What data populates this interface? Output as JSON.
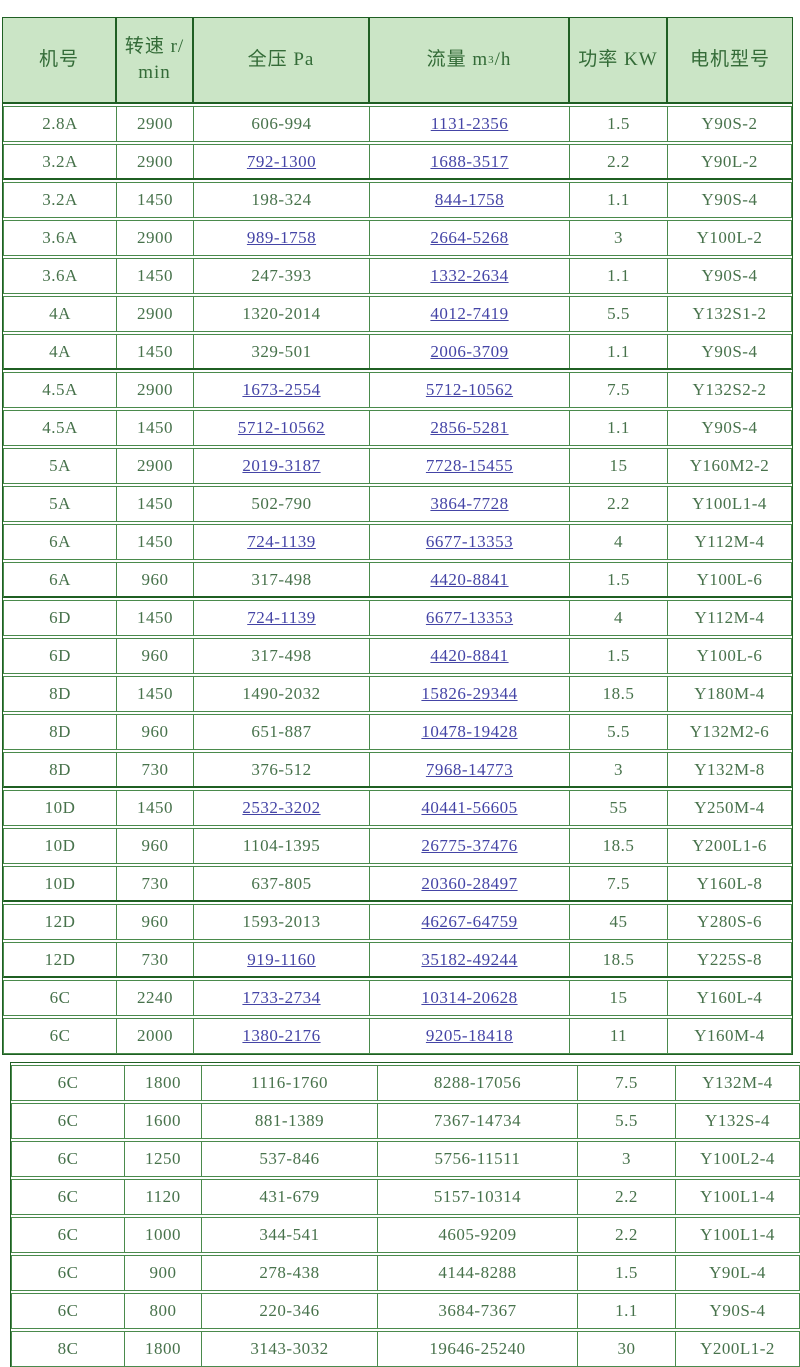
{
  "colors": {
    "header_bg": "#cbe5c6",
    "border_green": "#4a8a4c",
    "border_dark_green": "#1f5f23",
    "text_green": "#47724b",
    "link_blue": "#4444a6",
    "page_bg": "#ffffff"
  },
  "table": {
    "headers": {
      "machine": "机号",
      "speed": "转速 r/min",
      "pressure": "全压 Pa",
      "flow_prefix": "流量 m",
      "flow_sup": "3",
      "flow_suffix": "/h",
      "power": "功率 KW",
      "motor": "电机型号"
    },
    "rows": [
      {
        "machine": "2.8A",
        "speed": "2900",
        "pressure": "606-994",
        "pressure_link": false,
        "flow": "1131-2356",
        "flow_link": true,
        "power": "1.5",
        "motor": "Y90S-2",
        "group_end": false,
        "section": 1
      },
      {
        "machine": "3.2A",
        "speed": "2900",
        "pressure": "792-1300",
        "pressure_link": true,
        "flow": "1688-3517",
        "flow_link": true,
        "power": "2.2",
        "motor": "Y90L-2",
        "group_end": true,
        "section": 1
      },
      {
        "machine": "3.2A",
        "speed": "1450",
        "pressure": "198-324",
        "pressure_link": false,
        "flow": "844-1758",
        "flow_link": true,
        "power": "1.1",
        "motor": "Y90S-4",
        "group_end": false,
        "section": 1
      },
      {
        "machine": "3.6A",
        "speed": "2900",
        "pressure": "989-1758",
        "pressure_link": true,
        "flow": "2664-5268",
        "flow_link": true,
        "power": "3",
        "motor": "Y100L-2",
        "group_end": false,
        "section": 1
      },
      {
        "machine": "3.6A",
        "speed": "1450",
        "pressure": "247-393",
        "pressure_link": false,
        "flow": "1332-2634",
        "flow_link": true,
        "power": "1.1",
        "motor": "Y90S-4",
        "group_end": false,
        "section": 1
      },
      {
        "machine": "4A",
        "speed": "2900",
        "pressure": "1320-2014",
        "pressure_link": false,
        "flow": "4012-7419",
        "flow_link": true,
        "power": "5.5",
        "motor": "Y132S1-2",
        "group_end": false,
        "section": 1
      },
      {
        "machine": "4A",
        "speed": "1450",
        "pressure": "329-501",
        "pressure_link": false,
        "flow": "2006-3709",
        "flow_link": true,
        "power": "1.1",
        "motor": "Y90S-4",
        "group_end": true,
        "section": 1
      },
      {
        "machine": "4.5A",
        "speed": "2900",
        "pressure": "1673-2554",
        "pressure_link": true,
        "flow": "5712-10562",
        "flow_link": true,
        "power": "7.5",
        "motor": "Y132S2-2",
        "group_end": false,
        "section": 1
      },
      {
        "machine": "4.5A",
        "speed": "1450",
        "pressure": "5712-10562",
        "pressure_link": true,
        "flow": "2856-5281",
        "flow_link": true,
        "power": "1.1",
        "motor": "Y90S-4",
        "group_end": false,
        "section": 1
      },
      {
        "machine": "5A",
        "speed": "2900",
        "pressure": "2019-3187",
        "pressure_link": true,
        "flow": "7728-15455",
        "flow_link": true,
        "power": "15",
        "motor": "Y160M2-2",
        "group_end": false,
        "section": 1
      },
      {
        "machine": "5A",
        "speed": "1450",
        "pressure": "502-790",
        "pressure_link": false,
        "flow": "3864-7728",
        "flow_link": true,
        "power": "2.2",
        "motor": "Y100L1-4",
        "group_end": false,
        "section": 1
      },
      {
        "machine": "6A",
        "speed": "1450",
        "pressure": "724-1139",
        "pressure_link": true,
        "flow": "6677-13353",
        "flow_link": true,
        "power": "4",
        "motor": "Y112M-4",
        "group_end": false,
        "section": 1
      },
      {
        "machine": "6A",
        "speed": "960",
        "pressure": "317-498",
        "pressure_link": false,
        "flow": "4420-8841",
        "flow_link": true,
        "power": "1.5",
        "motor": "Y100L-6",
        "group_end": true,
        "section": 1
      },
      {
        "machine": "6D",
        "speed": "1450",
        "pressure": "724-1139",
        "pressure_link": true,
        "flow": "6677-13353",
        "flow_link": true,
        "power": "4",
        "motor": "Y112M-4",
        "group_end": false,
        "section": 1
      },
      {
        "machine": "6D",
        "speed": "960",
        "pressure": "317-498",
        "pressure_link": false,
        "flow": "4420-8841",
        "flow_link": true,
        "power": "1.5",
        "motor": "Y100L-6",
        "group_end": false,
        "section": 1
      },
      {
        "machine": "8D",
        "speed": "1450",
        "pressure": "1490-2032",
        "pressure_link": false,
        "flow": "15826-29344",
        "flow_link": true,
        "power": "18.5",
        "motor": "Y180M-4",
        "group_end": false,
        "section": 1
      },
      {
        "machine": "8D",
        "speed": "960",
        "pressure": "651-887",
        "pressure_link": false,
        "flow": "10478-19428",
        "flow_link": true,
        "power": "5.5",
        "motor": "Y132M2-6",
        "group_end": false,
        "section": 1
      },
      {
        "machine": "8D",
        "speed": "730",
        "pressure": "376-512",
        "pressure_link": false,
        "flow": "7968-14773",
        "flow_link": true,
        "power": "3",
        "motor": "Y132M-8",
        "group_end": true,
        "section": 1
      },
      {
        "machine": "10D",
        "speed": "1450",
        "pressure": "2532-3202",
        "pressure_link": true,
        "flow": "40441-56605",
        "flow_link": true,
        "power": "55",
        "motor": "Y250M-4",
        "group_end": false,
        "section": 1
      },
      {
        "machine": "10D",
        "speed": "960",
        "pressure": "1104-1395",
        "pressure_link": false,
        "flow": "26775-37476",
        "flow_link": true,
        "power": "18.5",
        "motor": "Y200L1-6",
        "group_end": false,
        "section": 1
      },
      {
        "machine": "10D",
        "speed": "730",
        "pressure": "637-805",
        "pressure_link": false,
        "flow": "20360-28497",
        "flow_link": true,
        "power": "7.5",
        "motor": "Y160L-8",
        "group_end": true,
        "section": 1
      },
      {
        "machine": "12D",
        "speed": "960",
        "pressure": "1593-2013",
        "pressure_link": false,
        "flow": "46267-64759",
        "flow_link": true,
        "power": "45",
        "motor": "Y280S-6",
        "group_end": false,
        "section": 1
      },
      {
        "machine": "12D",
        "speed": "730",
        "pressure": "919-1160",
        "pressure_link": true,
        "flow": "35182-49244",
        "flow_link": true,
        "power": "18.5",
        "motor": "Y225S-8",
        "group_end": true,
        "section": 1
      },
      {
        "machine": "6C",
        "speed": "2240",
        "pressure": "1733-2734",
        "pressure_link": true,
        "flow": "10314-20628",
        "flow_link": true,
        "power": "15",
        "motor": "Y160L-4",
        "group_end": false,
        "section": 1
      },
      {
        "machine": "6C",
        "speed": "2000",
        "pressure": "1380-2176",
        "pressure_link": true,
        "flow": "9205-18418",
        "flow_link": true,
        "power": "11",
        "motor": "Y160M-4",
        "group_end": false,
        "section": 1
      },
      {
        "machine": "6C",
        "speed": "1800",
        "pressure": "1116-1760",
        "pressure_link": false,
        "flow": "8288-17056",
        "flow_link": false,
        "power": "7.5",
        "motor": "Y132M-4",
        "group_end": false,
        "section": 2
      },
      {
        "machine": "6C",
        "speed": "1600",
        "pressure": "881-1389",
        "pressure_link": false,
        "flow": "7367-14734",
        "flow_link": false,
        "power": "5.5",
        "motor": "Y132S-4",
        "group_end": false,
        "section": 2
      },
      {
        "machine": "6C",
        "speed": "1250",
        "pressure": "537-846",
        "pressure_link": false,
        "flow": "5756-11511",
        "flow_link": false,
        "power": "3",
        "motor": "Y100L2-4",
        "group_end": false,
        "section": 2
      },
      {
        "machine": "6C",
        "speed": "1120",
        "pressure": "431-679",
        "pressure_link": false,
        "flow": "5157-10314",
        "flow_link": false,
        "power": "2.2",
        "motor": "Y100L1-4",
        "group_end": false,
        "section": 2
      },
      {
        "machine": "6C",
        "speed": "1000",
        "pressure": "344-541",
        "pressure_link": false,
        "flow": "4605-9209",
        "flow_link": false,
        "power": "2.2",
        "motor": "Y100L1-4",
        "group_end": false,
        "section": 2
      },
      {
        "machine": "6C",
        "speed": "900",
        "pressure": "278-438",
        "pressure_link": false,
        "flow": "4144-8288",
        "flow_link": false,
        "power": "1.5",
        "motor": "Y90L-4",
        "group_end": false,
        "section": 2
      },
      {
        "machine": "6C",
        "speed": "800",
        "pressure": "220-346",
        "pressure_link": false,
        "flow": "3684-7367",
        "flow_link": false,
        "power": "1.1",
        "motor": "Y90S-4",
        "group_end": false,
        "section": 2
      },
      {
        "machine": "8C",
        "speed": "1800",
        "pressure": "3143-3032",
        "pressure_link": false,
        "flow": "19646-25240",
        "flow_link": false,
        "power": "30",
        "motor": "Y200L1-2",
        "group_end": false,
        "section": 2
      }
    ]
  }
}
